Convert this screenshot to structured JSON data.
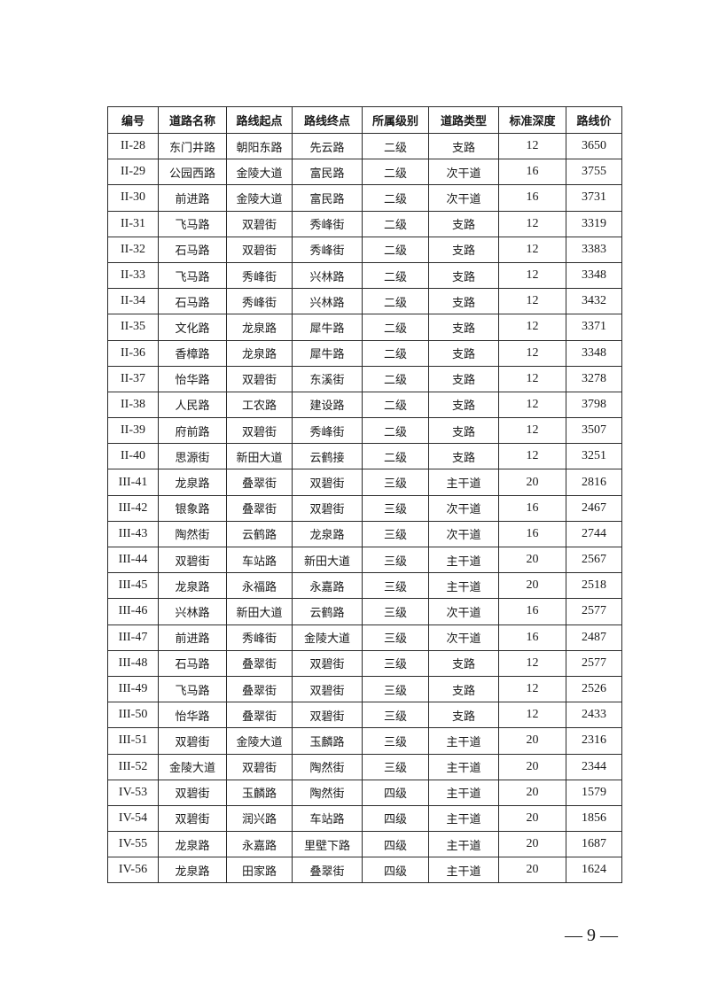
{
  "table": {
    "headers": [
      "编号",
      "道路名称",
      "路线起点",
      "路线终点",
      "所属级别",
      "道路类型",
      "标准深度",
      "路线价"
    ],
    "rows": [
      [
        "II-28",
        "东门井路",
        "朝阳东路",
        "先云路",
        "二级",
        "支路",
        "12",
        "3650"
      ],
      [
        "II-29",
        "公园西路",
        "金陵大道",
        "富民路",
        "二级",
        "次干道",
        "16",
        "3755"
      ],
      [
        "II-30",
        "前进路",
        "金陵大道",
        "富民路",
        "二级",
        "次干道",
        "16",
        "3731"
      ],
      [
        "II-31",
        "飞马路",
        "双碧街",
        "秀峰街",
        "二级",
        "支路",
        "12",
        "3319"
      ],
      [
        "II-32",
        "石马路",
        "双碧街",
        "秀峰街",
        "二级",
        "支路",
        "12",
        "3383"
      ],
      [
        "II-33",
        "飞马路",
        "秀峰街",
        "兴林路",
        "二级",
        "支路",
        "12",
        "3348"
      ],
      [
        "II-34",
        "石马路",
        "秀峰街",
        "兴林路",
        "二级",
        "支路",
        "12",
        "3432"
      ],
      [
        "II-35",
        "文化路",
        "龙泉路",
        "犀牛路",
        "二级",
        "支路",
        "12",
        "3371"
      ],
      [
        "II-36",
        "香樟路",
        "龙泉路",
        "犀牛路",
        "二级",
        "支路",
        "12",
        "3348"
      ],
      [
        "II-37",
        "怡华路",
        "双碧街",
        "东溪街",
        "二级",
        "支路",
        "12",
        "3278"
      ],
      [
        "II-38",
        "人民路",
        "工农路",
        "建设路",
        "二级",
        "支路",
        "12",
        "3798"
      ],
      [
        "II-39",
        "府前路",
        "双碧街",
        "秀峰街",
        "二级",
        "支路",
        "12",
        "3507"
      ],
      [
        "II-40",
        "思源街",
        "新田大道",
        "云鹤接",
        "二级",
        "支路",
        "12",
        "3251"
      ],
      [
        "III-41",
        "龙泉路",
        "叠翠街",
        "双碧街",
        "三级",
        "主干道",
        "20",
        "2816"
      ],
      [
        "III-42",
        "银象路",
        "叠翠街",
        "双碧街",
        "三级",
        "次干道",
        "16",
        "2467"
      ],
      [
        "III-43",
        "陶然街",
        "云鹤路",
        "龙泉路",
        "三级",
        "次干道",
        "16",
        "2744"
      ],
      [
        "III-44",
        "双碧街",
        "车站路",
        "新田大道",
        "三级",
        "主干道",
        "20",
        "2567"
      ],
      [
        "III-45",
        "龙泉路",
        "永福路",
        "永嘉路",
        "三级",
        "主干道",
        "20",
        "2518"
      ],
      [
        "III-46",
        "兴林路",
        "新田大道",
        "云鹤路",
        "三级",
        "次干道",
        "16",
        "2577"
      ],
      [
        "III-47",
        "前进路",
        "秀峰街",
        "金陵大道",
        "三级",
        "次干道",
        "16",
        "2487"
      ],
      [
        "III-48",
        "石马路",
        "叠翠街",
        "双碧街",
        "三级",
        "支路",
        "12",
        "2577"
      ],
      [
        "III-49",
        "飞马路",
        "叠翠街",
        "双碧街",
        "三级",
        "支路",
        "12",
        "2526"
      ],
      [
        "III-50",
        "怡华路",
        "叠翠街",
        "双碧街",
        "三级",
        "支路",
        "12",
        "2433"
      ],
      [
        "III-51",
        "双碧街",
        "金陵大道",
        "玉麟路",
        "三级",
        "主干道",
        "20",
        "2316"
      ],
      [
        "III-52",
        "金陵大道",
        "双碧街",
        "陶然街",
        "三级",
        "主干道",
        "20",
        "2344"
      ],
      [
        "IV-53",
        "双碧街",
        "玉麟路",
        "陶然街",
        "四级",
        "主干道",
        "20",
        "1579"
      ],
      [
        "IV-54",
        "双碧街",
        "润兴路",
        "车站路",
        "四级",
        "主干道",
        "20",
        "1856"
      ],
      [
        "IV-55",
        "龙泉路",
        "永嘉路",
        "里壁下路",
        "四级",
        "主干道",
        "20",
        "1687"
      ],
      [
        "IV-56",
        "龙泉路",
        "田家路",
        "叠翠街",
        "四级",
        "主干道",
        "20",
        "1624"
      ]
    ]
  },
  "page_number": "— 9 —"
}
